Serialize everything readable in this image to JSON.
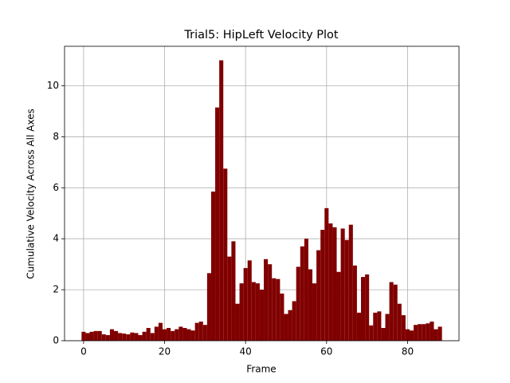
{
  "chart_data": {
    "type": "bar",
    "title": "Trial5: HipLeft Velocity Plot",
    "x_label": "Frame",
    "y_label": "Cumulative Velocity Across All Axes",
    "color": "#800000",
    "grid": true,
    "x": [
      0,
      1,
      2,
      3,
      4,
      5,
      6,
      7,
      8,
      9,
      10,
      11,
      12,
      13,
      14,
      15,
      16,
      17,
      18,
      19,
      20,
      21,
      22,
      23,
      24,
      25,
      26,
      27,
      28,
      29,
      30,
      31,
      32,
      33,
      34,
      35,
      36,
      37,
      38,
      39,
      40,
      41,
      42,
      43,
      44,
      45,
      46,
      47,
      48,
      49,
      50,
      51,
      52,
      53,
      54,
      55,
      56,
      57,
      58,
      59,
      60,
      61,
      62,
      63,
      64,
      65,
      66,
      67,
      68,
      69,
      70,
      71,
      72,
      73,
      74,
      75,
      76,
      77,
      78,
      79,
      80,
      81,
      82,
      83,
      84,
      85,
      86,
      87,
      88
    ],
    "values": [
      0.35,
      0.3,
      0.35,
      0.38,
      0.38,
      0.25,
      0.22,
      0.45,
      0.38,
      0.3,
      0.28,
      0.25,
      0.32,
      0.3,
      0.22,
      0.35,
      0.5,
      0.3,
      0.55,
      0.7,
      0.45,
      0.5,
      0.38,
      0.45,
      0.55,
      0.5,
      0.45,
      0.4,
      0.7,
      0.75,
      0.62,
      2.65,
      5.85,
      9.15,
      11.0,
      6.75,
      3.3,
      3.9,
      1.45,
      2.25,
      2.85,
      3.15,
      2.3,
      2.25,
      2.0,
      3.2,
      3.0,
      2.45,
      2.42,
      1.85,
      1.05,
      1.2,
      1.55,
      2.9,
      3.7,
      4.0,
      2.8,
      2.25,
      3.55,
      4.35,
      5.2,
      4.6,
      4.45,
      2.7,
      4.4,
      3.95,
      4.55,
      2.95,
      1.1,
      2.5,
      2.6,
      0.6,
      1.1,
      1.15,
      0.5,
      1.05,
      2.3,
      2.2,
      1.45,
      1.0,
      0.45,
      0.4,
      0.62,
      0.65,
      0.65,
      0.68,
      0.75,
      0.45,
      0.55
    ],
    "xlim": [
      -4.7,
      92.7
    ],
    "xticks": [
      0,
      20,
      40,
      60,
      80
    ],
    "ylim": [
      0,
      11.55
    ],
    "yticks": [
      0,
      2,
      4,
      6,
      8,
      10
    ]
  }
}
